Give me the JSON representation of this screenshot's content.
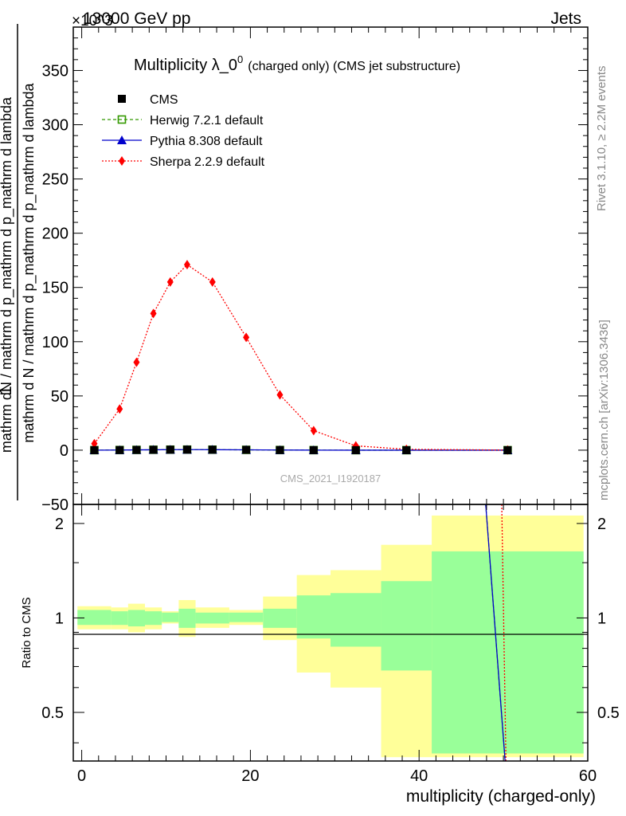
{
  "header": {
    "energy": "13000 GeV pp",
    "process": "Jets",
    "exponent": "×10^3",
    "side_rivet": "Rivet 3.1.10, ≥ 2.2M events",
    "side_mcplots": "mcplots.cern.ch [arXiv:1306.3436]",
    "watermark": "CMS_2021_I1920187"
  },
  "chart_data": [
    {
      "type": "line",
      "title": "Multiplicity λ_0",
      "title_sup": "0",
      "title_small": "(charged only) (CMS jet substructure)",
      "ylabel_top": "1",
      "ylabel_numerator": "mathrm d N / mathrm d p_mathrm d p_mathrm d lambda",
      "ylabel_denominator": "mathrm d N / mathrm d p_mathrm d p_mathrm d lambda",
      "ylabel": "mathrm dN / mathrm d p_mathrm d p_mathrm d lambda",
      "ylabel_main": "mathrm d N / mathrm d p_mathrm d p_mathrm d lambda",
      "ylim": [
        -50,
        390
      ],
      "xlim": [
        -1,
        60
      ],
      "yticks": [
        -50,
        0,
        50,
        100,
        150,
        200,
        250,
        300,
        350
      ],
      "ytick_labels": [
        "−50",
        "0",
        "50",
        "100",
        "150",
        "200",
        "250",
        "300",
        "350"
      ],
      "legend_position": "top-left",
      "x": [
        1.5,
        4.5,
        6.5,
        8.5,
        10.5,
        12.5,
        15.5,
        19.5,
        23.5,
        27.5,
        32.5,
        38.5,
        50.5
      ],
      "series": [
        {
          "name": "CMS",
          "color": "#000000",
          "marker": "square",
          "values": [
            0.02,
            0.14,
            0.26,
            0.38,
            0.48,
            0.52,
            0.46,
            0.31,
            0.15,
            0.05,
            0.012,
            0.002,
            0.0003
          ]
        },
        {
          "name": "Herwig 7.2.1 default",
          "color": "#339900",
          "marker": "open-square",
          "line": "dashed",
          "values": [
            0.02,
            0.14,
            0.26,
            0.38,
            0.48,
            0.52,
            0.46,
            0.31,
            0.15,
            0.05,
            0.012,
            0.002,
            0.0003
          ]
        },
        {
          "name": "Pythia 8.308 default",
          "color": "#0000cc",
          "marker": "triangle",
          "line": "solid",
          "values": [
            0.02,
            0.14,
            0.26,
            0.38,
            0.48,
            0.52,
            0.46,
            0.31,
            0.15,
            0.05,
            0.012,
            0.002,
            0.0003
          ]
        },
        {
          "name": "Sherpa 2.2.9 default",
          "color": "#ff0000",
          "marker": "diamond",
          "line": "dotted",
          "values": [
            6,
            38,
            81,
            126,
            155,
            171,
            155,
            104,
            51,
            18,
            4,
            0.8,
            0.1
          ]
        }
      ]
    },
    {
      "type": "line",
      "ylabel": "Ratio to CMS",
      "xlabel": "multiplicity (charged-only)",
      "ylim": [
        0.35,
        2.3
      ],
      "log_y": true,
      "xlim": [
        -1,
        60
      ],
      "xticks": [
        0,
        20,
        40,
        60
      ],
      "yticks": [
        0.5,
        1,
        2
      ],
      "bands": [
        {
          "x0": -0.5,
          "x1": 3.5,
          "stat_lo": 0.95,
          "stat_hi": 1.06,
          "tot_lo": 0.92,
          "tot_hi": 1.09
        },
        {
          "x0": 3.5,
          "x1": 5.5,
          "stat_lo": 0.95,
          "stat_hi": 1.05,
          "tot_lo": 0.92,
          "tot_hi": 1.08
        },
        {
          "x0": 5.5,
          "x1": 7.5,
          "stat_lo": 0.94,
          "stat_hi": 1.06,
          "tot_lo": 0.9,
          "tot_hi": 1.11
        },
        {
          "x0": 7.5,
          "x1": 9.5,
          "stat_lo": 0.95,
          "stat_hi": 1.05,
          "tot_lo": 0.92,
          "tot_hi": 1.08
        },
        {
          "x0": 9.5,
          "x1": 11.5,
          "stat_lo": 0.97,
          "stat_hi": 1.04,
          "tot_lo": 0.96,
          "tot_hi": 1.05
        },
        {
          "x0": 11.5,
          "x1": 13.5,
          "stat_lo": 0.93,
          "stat_hi": 1.07,
          "tot_lo": 0.87,
          "tot_hi": 1.14
        },
        {
          "x0": 13.5,
          "x1": 17.5,
          "stat_lo": 0.96,
          "stat_hi": 1.04,
          "tot_lo": 0.93,
          "tot_hi": 1.08
        },
        {
          "x0": 17.5,
          "x1": 21.5,
          "stat_lo": 0.97,
          "stat_hi": 1.04,
          "tot_lo": 0.95,
          "tot_hi": 1.06
        },
        {
          "x0": 21.5,
          "x1": 25.5,
          "stat_lo": 0.93,
          "stat_hi": 1.07,
          "tot_lo": 0.85,
          "tot_hi": 1.17
        },
        {
          "x0": 25.5,
          "x1": 29.5,
          "stat_lo": 0.86,
          "stat_hi": 1.18,
          "tot_lo": 0.67,
          "tot_hi": 1.37
        },
        {
          "x0": 29.5,
          "x1": 35.5,
          "stat_lo": 0.81,
          "stat_hi": 1.2,
          "tot_lo": 0.6,
          "tot_hi": 1.42
        },
        {
          "x0": 35.5,
          "x1": 41.5,
          "stat_lo": 0.68,
          "stat_hi": 1.31,
          "tot_lo": 0.36,
          "tot_hi": 1.71
        },
        {
          "x0": 41.5,
          "x1": 59.5,
          "stat_lo": 0.37,
          "stat_hi": 1.63,
          "tot_lo": 0.36,
          "tot_hi": 2.12
        }
      ],
      "band_colors": {
        "stat": "#99ff99",
        "total": "#ffff99"
      },
      "ratio_lines": [
        {
          "name": "Herwig 7.2.1 default",
          "color": "#339900",
          "dash": "4,3",
          "points": [
            [
              47.9,
              2.3
            ],
            [
              50.2,
              0.35
            ]
          ]
        },
        {
          "name": "Pythia 8.308 default",
          "color": "#0000cc",
          "dash": "",
          "points": [
            [
              47.9,
              2.3
            ],
            [
              50.2,
              0.35
            ]
          ]
        },
        {
          "name": "Sherpa 2.2.9 default",
          "color": "#ff0000",
          "dash": "2,2",
          "points": [
            [
              49.8,
              2.3
            ],
            [
              50.3,
              0.35
            ]
          ]
        }
      ]
    }
  ]
}
